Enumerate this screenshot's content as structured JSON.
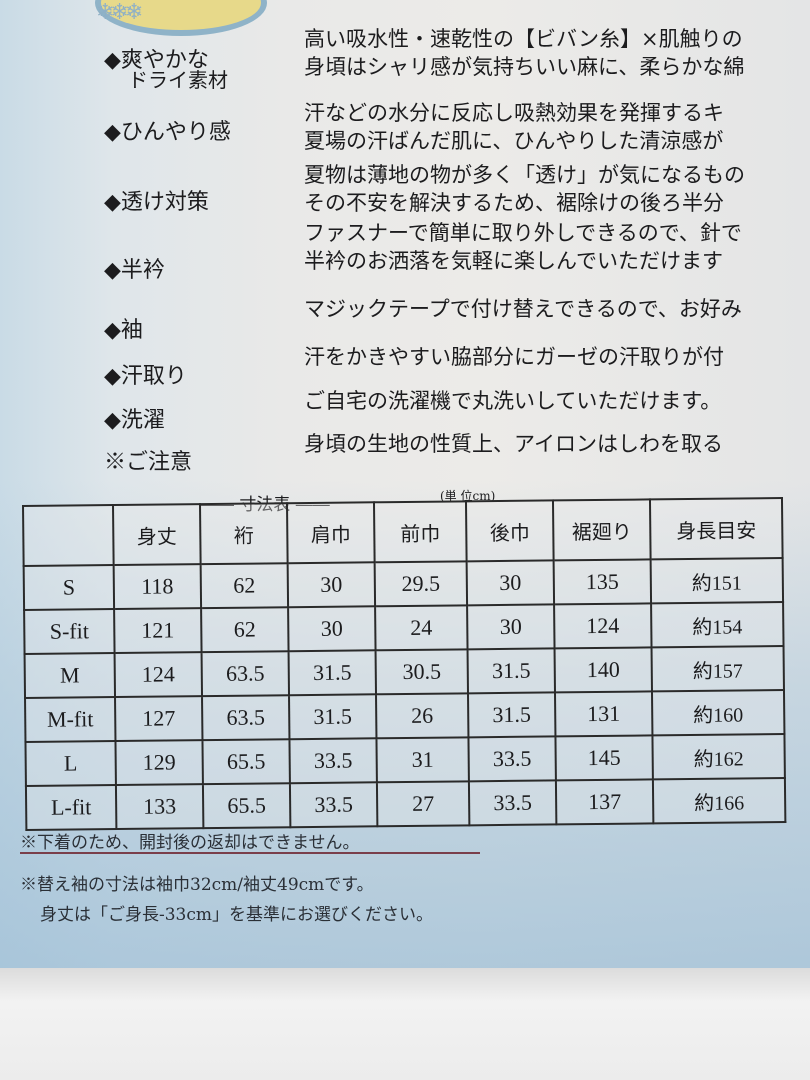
{
  "features": [
    {
      "label": "◆爽やかな",
      "label2": "ドライ素材",
      "lines": [
        "高い吸水性・速乾性の【ビバン糸】×肌触りの",
        "身頃はシャリ感が気持ちいい麻に、柔らかな綿"
      ]
    },
    {
      "label": "◆ひんやり感",
      "lines": [
        "汗などの水分に反応し吸熱効果を発揮するキ",
        "夏場の汗ばんだ肌に、ひんやりした清涼感が"
      ]
    },
    {
      "label": "◆透け対策",
      "lines": [
        "夏物は薄地の物が多く「透け」が気になるもの",
        "その不安を解決するため、裾除けの後ろ半分"
      ]
    },
    {
      "label": "◆半衿",
      "lines": [
        "ファスナーで簡単に取り外しできるので、針で",
        "半衿のお洒落を気軽に楽しんでいただけます"
      ]
    },
    {
      "label": "◆袖",
      "lines": [
        "マジックテープで付け替えできるので、お好み"
      ]
    },
    {
      "label": "◆汗取り",
      "lines": [
        "汗をかきやすい脇部分にガーゼの汗取りが付"
      ]
    },
    {
      "label": "◆洗濯",
      "lines": [
        "ご自宅の洗濯機で丸洗いしていただけます。"
      ]
    },
    {
      "label": "※ご注意",
      "lines": [
        "身頃の生地の性質上、アイロンはしわを取る"
      ]
    }
  ],
  "size_table": {
    "title": "―― 寸法表 ――",
    "unit": "(単 位cm)",
    "headers": [
      "",
      "身丈",
      "裄",
      "肩巾",
      "前巾",
      "後巾",
      "裾廻り",
      "身長目安"
    ],
    "rows": [
      [
        "S",
        "118",
        "62",
        "30",
        "29.5",
        "30",
        "135",
        "約151"
      ],
      [
        "S-fit",
        "121",
        "62",
        "30",
        "24",
        "30",
        "124",
        "約154"
      ],
      [
        "M",
        "124",
        "63.5",
        "31.5",
        "30.5",
        "31.5",
        "140",
        "約157"
      ],
      [
        "M-fit",
        "127",
        "63.5",
        "31.5",
        "26",
        "31.5",
        "131",
        "約160"
      ],
      [
        "L",
        "129",
        "65.5",
        "33.5",
        "31",
        "33.5",
        "145",
        "約162"
      ],
      [
        "L-fit",
        "133",
        "65.5",
        "33.5",
        "27",
        "33.5",
        "137",
        "約166"
      ]
    ]
  },
  "notes": [
    "※下着のため、開封後の返却はできません。",
    "※替え袖の寸法は袖巾32cm/袖丈49cmです。",
    "身丈は「ご身長-33cm」を基準にお選びください。"
  ]
}
